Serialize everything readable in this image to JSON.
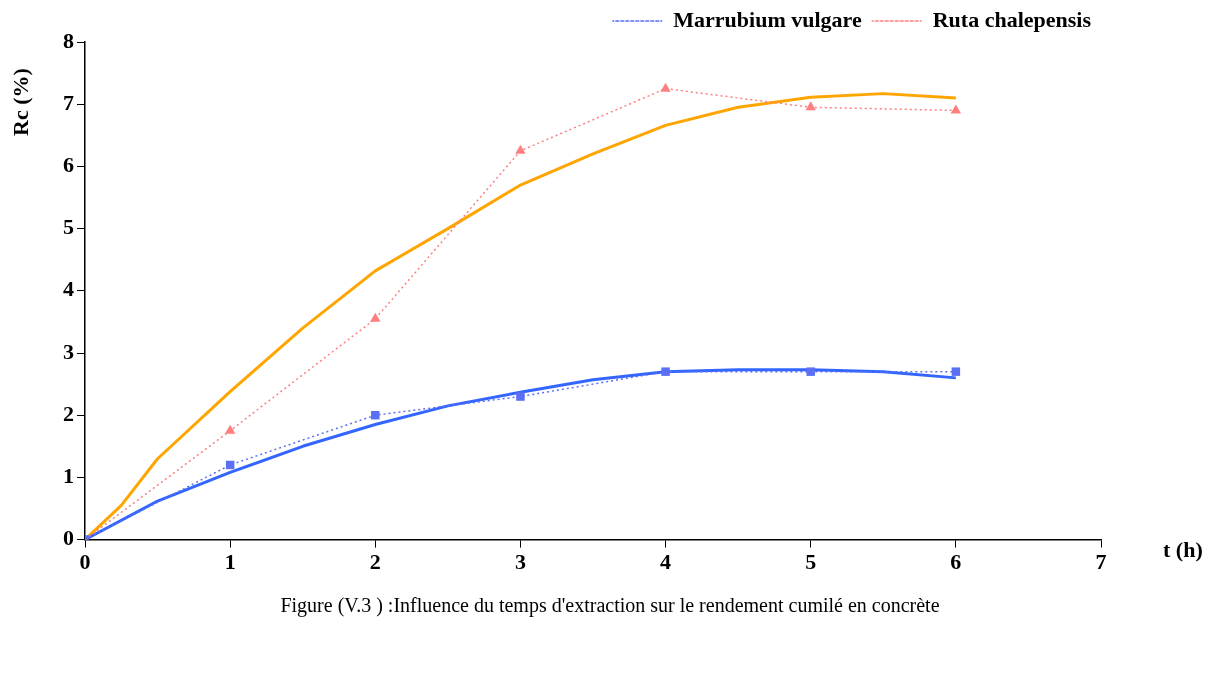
{
  "chart_data": {
    "type": "line",
    "xlabel": "t (h)",
    "ylabel": "Rc (%)",
    "xlim": [
      0,
      7
    ],
    "xticks": [
      0,
      1,
      2,
      3,
      4,
      5,
      6,
      7
    ],
    "ylim": [
      0,
      8
    ],
    "yticks": [
      0,
      1,
      2,
      3,
      4,
      5,
      6,
      7,
      8
    ],
    "grid": false,
    "legend": "top right",
    "series": [
      {
        "name": "Marrubium vulgare",
        "color": "#5b6ff5",
        "x": [
          0,
          1,
          2,
          3,
          4,
          5,
          6
        ],
        "values": [
          0,
          1.2,
          2.0,
          2.3,
          2.7,
          2.7,
          2.7
        ],
        "marker": "square",
        "line_style": "dotted"
      },
      {
        "name": "Ruta chalepensis",
        "color": "#ff7f7f",
        "x": [
          0,
          1,
          2,
          3,
          4,
          5,
          6
        ],
        "values": [
          0,
          1.75,
          3.55,
          6.25,
          7.25,
          6.95,
          6.9
        ],
        "marker": "triangle",
        "line_style": "dotted"
      },
      {
        "color": "#3366ff",
        "x": [
          0,
          0.5,
          1,
          1.5,
          2,
          2.5,
          3,
          3.5,
          4,
          4.5,
          5,
          5.5,
          6
        ],
        "values": [
          0,
          0.62,
          1.08,
          1.5,
          1.85,
          2.15,
          2.37,
          2.57,
          2.7,
          2.73,
          2.73,
          2.7,
          2.6
        ],
        "marker": "none",
        "line_style": "solid"
      },
      {
        "color": "#ffa500",
        "x": [
          0,
          0.25,
          0.5,
          1,
          1.5,
          2,
          2.5,
          3,
          3.5,
          4,
          4.5,
          5,
          5.5,
          6
        ],
        "values": [
          0,
          0.55,
          1.3,
          2.38,
          3.4,
          4.32,
          5.0,
          5.7,
          6.2,
          6.66,
          6.95,
          7.11,
          7.17,
          7.1
        ],
        "marker": "none",
        "line_style": "solid"
      }
    ],
    "annotations": [
      "Figure (V.3 ) :Influence du temps d'extraction sur le rendement cumilé en concrète"
    ]
  }
}
